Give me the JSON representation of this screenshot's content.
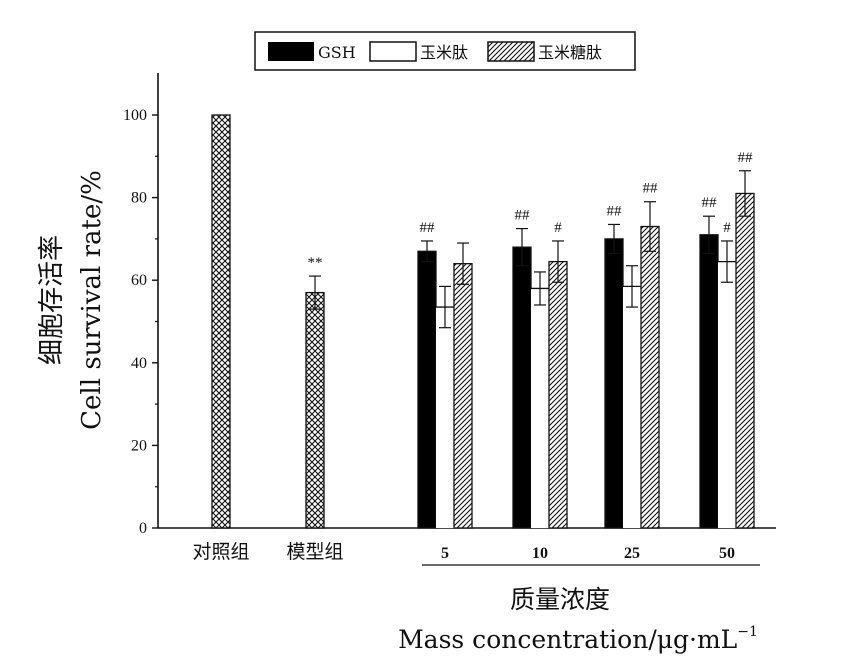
{
  "chart_data": {
    "type": "bar",
    "ylabel_cn": "细胞存活率",
    "ylabel_en": "Cell  survival  rate/%",
    "xlabel_cn": "质量浓度",
    "xlabel_en": "Mass  concentration/μg·mL",
    "xlabel_en_sup": "−1",
    "ylim": [
      0,
      110
    ],
    "yticks": [
      "0",
      "20",
      "40",
      "60",
      "80",
      "100"
    ],
    "legend": [
      "GSH",
      "玉米肽",
      "玉米糖肽"
    ],
    "controls": [
      {
        "label": "对照组",
        "value": 100,
        "err": 0,
        "annotation": ""
      },
      {
        "label": "模型组",
        "value": 57,
        "err": 4,
        "annotation": "**"
      }
    ],
    "categories": [
      "5",
      "10",
      "25",
      "50"
    ],
    "series": [
      {
        "name": "GSH",
        "values": [
          67,
          68,
          70,
          71
        ],
        "errors": [
          2.5,
          4.5,
          3.5,
          4.5
        ],
        "annotations": [
          "##",
          "##",
          "##",
          "##"
        ]
      },
      {
        "name": "玉米肽",
        "values": [
          53.5,
          58,
          58.5,
          64.5
        ],
        "errors": [
          5,
          4,
          5,
          5
        ],
        "annotations": [
          "",
          "",
          "",
          "#"
        ]
      },
      {
        "name": "玉米糖肽",
        "values": [
          64,
          64.5,
          73,
          81
        ],
        "errors": [
          5,
          5,
          6,
          5.5
        ],
        "annotations": [
          "",
          "#",
          "##",
          "##"
        ]
      }
    ]
  }
}
